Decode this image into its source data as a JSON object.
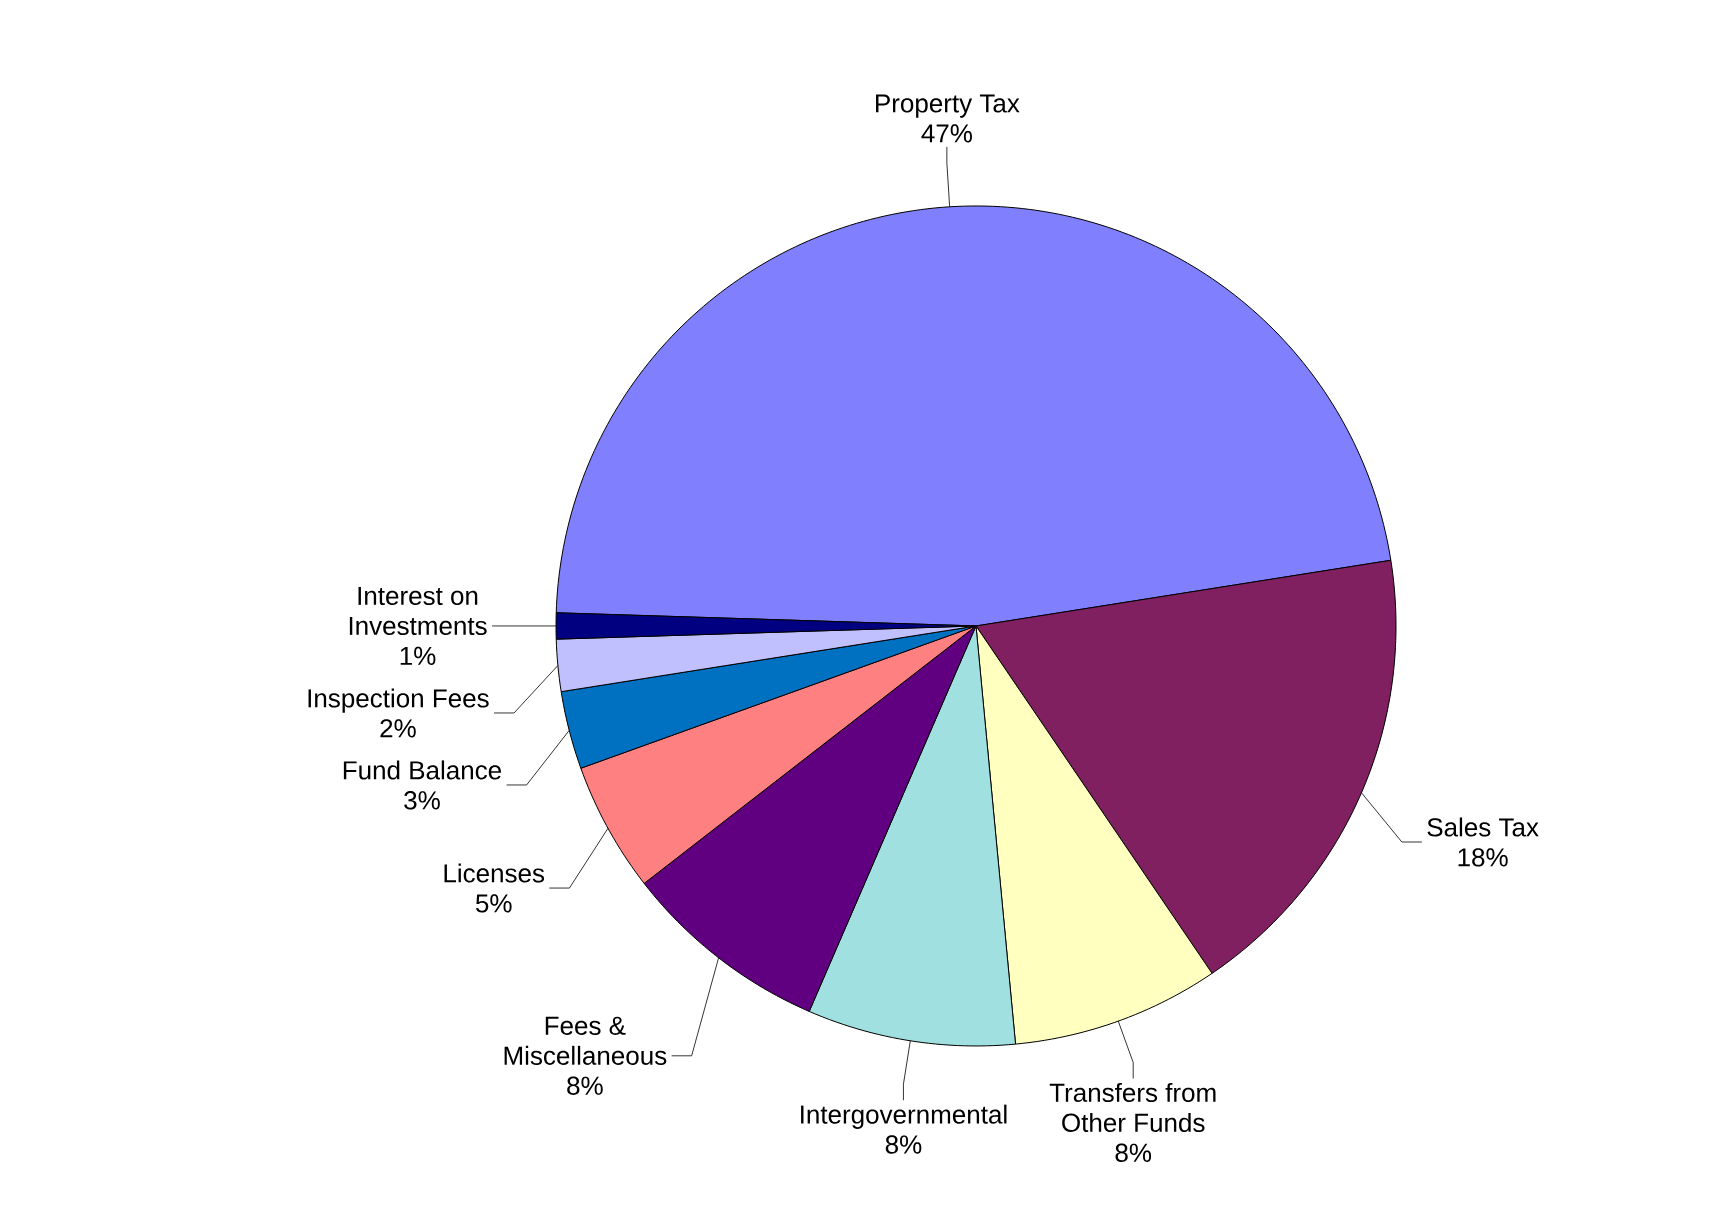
{
  "chart_data": {
    "type": "pie",
    "categories": [
      "Property Tax",
      "Sales Tax",
      "Transfers from Other Funds",
      "Intergovernmental",
      "Fees & Miscellaneous",
      "Licenses",
      "Fund Balance",
      "Inspection Fees",
      "Interest on Investments"
    ],
    "values": [
      47,
      18,
      8,
      8,
      8,
      5,
      3,
      2,
      1
    ],
    "value_labels": [
      "47%",
      "18%",
      "8%",
      "8%",
      "8%",
      "5%",
      "3%",
      "2%",
      "1%"
    ],
    "colors": [
      "#8080ff",
      "#802060",
      "#ffffc0",
      "#a0e0e0",
      "#600080",
      "#ff8080",
      "#0070c0",
      "#c0c0ff",
      "#000080"
    ]
  }
}
